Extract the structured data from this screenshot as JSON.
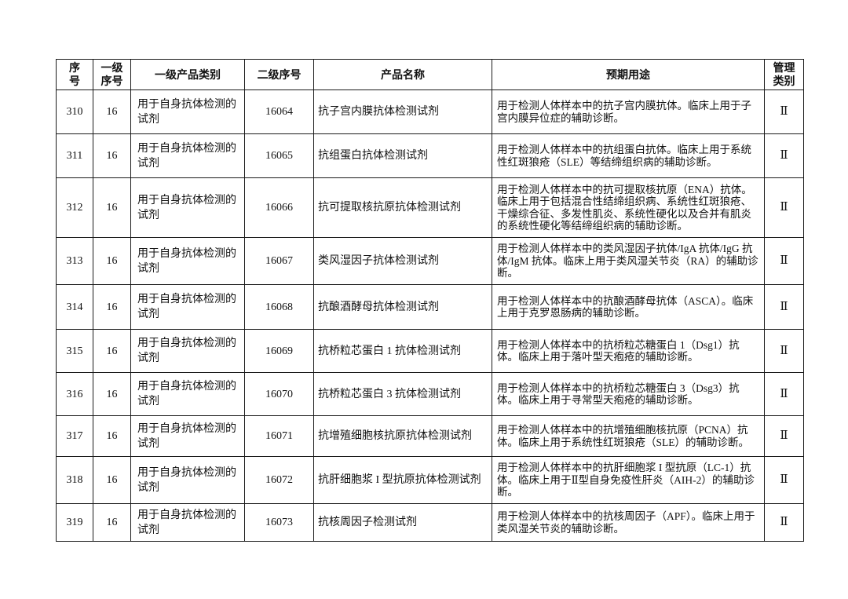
{
  "colors": {
    "background": "#ffffff",
    "border": "#1a1a1a",
    "text": "#111111"
  },
  "table": {
    "columns": [
      "序号",
      "一级序号",
      "一级产品类别",
      "二级序号",
      "产品名称",
      "预期用途",
      "管理类别"
    ],
    "rows": [
      {
        "seq": "310",
        "level1_seq": "16",
        "category": "用于自身抗体检测的试剂",
        "level2_seq": "16064",
        "product_name": "抗子宫内膜抗体检测试剂",
        "intended_use": "用于检测人体样本中的抗子宫内膜抗体。临床上用于子宫内膜异位症的辅助诊断。",
        "mgmt_class": "Ⅱ"
      },
      {
        "seq": "311",
        "level1_seq": "16",
        "category": "用于自身抗体检测的试剂",
        "level2_seq": "16065",
        "product_name": "抗组蛋白抗体检测试剂",
        "intended_use": "用于检测人体样本中的抗组蛋白抗体。临床上用于系统性红斑狼疮（SLE）等结缔组织病的辅助诊断。",
        "mgmt_class": "Ⅱ"
      },
      {
        "seq": "312",
        "level1_seq": "16",
        "category": "用于自身抗体检测的试剂",
        "level2_seq": "16066",
        "product_name": "抗可提取核抗原抗体检测试剂",
        "intended_use": "用于检测人体样本中的抗可提取核抗原（ENA）抗体。临床上用于包括混合性结缔组织病、系统性红斑狼疮、干燥综合征、多发性肌炎、系统性硬化以及合并有肌炎的系统性硬化等结缔组织病的辅助诊断。",
        "mgmt_class": "Ⅱ"
      },
      {
        "seq": "313",
        "level1_seq": "16",
        "category": "用于自身抗体检测的试剂",
        "level2_seq": "16067",
        "product_name": "类风湿因子抗体检测试剂",
        "intended_use": "用于检测人体样本中的类风湿因子抗体/IgA 抗体/IgG 抗体/IgM 抗体。临床上用于类风湿关节炎（RA）的辅助诊断。",
        "mgmt_class": "Ⅱ"
      },
      {
        "seq": "314",
        "level1_seq": "16",
        "category": "用于自身抗体检测的试剂",
        "level2_seq": "16068",
        "product_name": "抗酿酒酵母抗体检测试剂",
        "intended_use": "用于检测人体样本中的抗酿酒酵母抗体（ASCA）。临床上用于克罗恩肠病的辅助诊断。",
        "mgmt_class": "Ⅱ"
      },
      {
        "seq": "315",
        "level1_seq": "16",
        "category": "用于自身抗体检测的试剂",
        "level2_seq": "16069",
        "product_name": "抗桥粒芯蛋白 1 抗体检测试剂",
        "intended_use": "用于检测人体样本中的抗桥粒芯糖蛋白 1（Dsg1）抗体。临床上用于落叶型天疱疮的辅助诊断。",
        "mgmt_class": "Ⅱ"
      },
      {
        "seq": "316",
        "level1_seq": "16",
        "category": "用于自身抗体检测的试剂",
        "level2_seq": "16070",
        "product_name": "抗桥粒芯蛋白 3 抗体检测试剂",
        "intended_use": "用于检测人体样本中的抗桥粒芯糖蛋白 3（Dsg3）抗体。临床上用于寻常型天疱疮的辅助诊断。",
        "mgmt_class": "Ⅱ"
      },
      {
        "seq": "317",
        "level1_seq": "16",
        "category": "用于自身抗体检测的试剂",
        "level2_seq": "16071",
        "product_name": "抗增殖细胞核抗原抗体检测试剂",
        "intended_use": "用于检测人体样本中的抗增殖细胞核抗原（PCNA）抗体。临床上用于系统性红斑狼疮（SLE）的辅助诊断。",
        "mgmt_class": "Ⅱ"
      },
      {
        "seq": "318",
        "level1_seq": "16",
        "category": "用于自身抗体检测的试剂",
        "level2_seq": "16072",
        "product_name": "抗肝细胞浆 I 型抗原抗体检测试剂",
        "intended_use": "用于检测人体样本中的抗肝细胞浆 I 型抗原（LC-1）抗体。临床上用于Ⅱ型自身免疫性肝炎（AIH-2）的辅助诊断。",
        "mgmt_class": "Ⅱ"
      },
      {
        "seq": "319",
        "level1_seq": "16",
        "category": "用于自身抗体检测的试剂",
        "level2_seq": "16073",
        "product_name": "抗核周因子检测试剂",
        "intended_use": "用于检测人体样本中的抗核周因子（APF）。临床上用于类风湿关节炎的辅助诊断。",
        "mgmt_class": "Ⅱ"
      }
    ]
  }
}
